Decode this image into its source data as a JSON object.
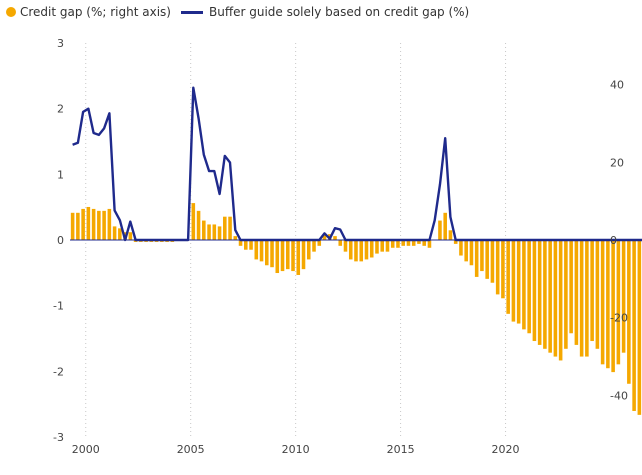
{
  "chart_data": {
    "type": "bar+line",
    "legend": [
      {
        "label": "Credit gap (%; right axis)",
        "color": "#F5A800",
        "marker": "circle"
      },
      {
        "label": "Buffer guide solely based on credit gap (%)",
        "color": "#1F2A8C",
        "marker": "line"
      }
    ],
    "x_ticks": [
      "2000",
      "2005",
      "2010",
      "2015",
      "2020"
    ],
    "y_left": {
      "ticks": [
        "3",
        "2",
        "1",
        "0",
        "-1",
        "-2",
        "-3"
      ],
      "range": [
        -3,
        3
      ]
    },
    "y_right": {
      "ticks": [
        "40",
        "20",
        "0",
        "-20",
        "-40"
      ],
      "range": [
        -50.7,
        50.7
      ]
    },
    "x_range": [
      1999.25,
      2024.5
    ],
    "grid": "vertical dotted",
    "legend_position": "top-left",
    "series": [
      {
        "name": "Credit gap (%; right axis)",
        "axis": "right",
        "kind": "bar",
        "x_start": 1999.25,
        "x_step": 0.25,
        "values": [
          7,
          7,
          8,
          8.5,
          8,
          7.5,
          7.5,
          8,
          3.5,
          3,
          2,
          2,
          -0.5,
          -0.5,
          -0.5,
          -0.5,
          -0.5,
          -0.5,
          -0.5,
          -0.5,
          0,
          0,
          0,
          9.5,
          7.5,
          5,
          4,
          4,
          3.5,
          6,
          6,
          1,
          -1.5,
          -2.5,
          -2.5,
          -5,
          -5.5,
          -6.5,
          -7,
          -8.5,
          -8,
          -7.5,
          -8,
          -9,
          -7.5,
          -5,
          -3,
          -1.5,
          1.5,
          1.5,
          1,
          -1.5,
          -3,
          -5,
          -5.5,
          -5.5,
          -5,
          -4.5,
          -3.5,
          -3,
          -3,
          -2,
          -2,
          -1.5,
          -1.5,
          -1.5,
          -1,
          -1.5,
          -2,
          0,
          5,
          7,
          2.5,
          -1,
          -4,
          -5.5,
          -6.5,
          -9.5,
          -8,
          -10,
          -11,
          -14,
          -15,
          -19,
          -21,
          -21.5,
          -23,
          -24,
          -26,
          -27,
          -28,
          -29,
          -30,
          -31,
          -28,
          -24,
          -27,
          -30,
          -30,
          -26,
          -28,
          -32,
          -33,
          -34,
          -32,
          -29,
          -37,
          -44,
          -45,
          -44,
          -45
        ]
      },
      {
        "name": "Buffer guide solely based on credit gap (%)",
        "axis": "left",
        "kind": "line",
        "x_start": 1999.25,
        "x_step": 0.25,
        "values": [
          1.45,
          1.48,
          1.95,
          2.0,
          1.63,
          1.6,
          1.7,
          1.93,
          0.45,
          0.3,
          0,
          0.28,
          0,
          0,
          0,
          0,
          0,
          0,
          0,
          0,
          0,
          0,
          0,
          2.32,
          1.85,
          1.3,
          1.05,
          1.05,
          0.7,
          1.28,
          1.18,
          0.15,
          0,
          0,
          0,
          0,
          0,
          0,
          0,
          0,
          0,
          0,
          0,
          0,
          0,
          0,
          0,
          0,
          0.1,
          0.02,
          0.18,
          0.16,
          0,
          0,
          0,
          0,
          0,
          0,
          0,
          0,
          0,
          0,
          0,
          0,
          0,
          0,
          0,
          0,
          0,
          0.3,
          0.85,
          1.55,
          0.35,
          0,
          0,
          0,
          0,
          0,
          0,
          0,
          0,
          0,
          0,
          0,
          0,
          0,
          0,
          0,
          0,
          0,
          0,
          0,
          0,
          0,
          0,
          0,
          0,
          0,
          0,
          0,
          0,
          0,
          0,
          0,
          0,
          0,
          0,
          0,
          0,
          0,
          0
        ]
      }
    ]
  }
}
